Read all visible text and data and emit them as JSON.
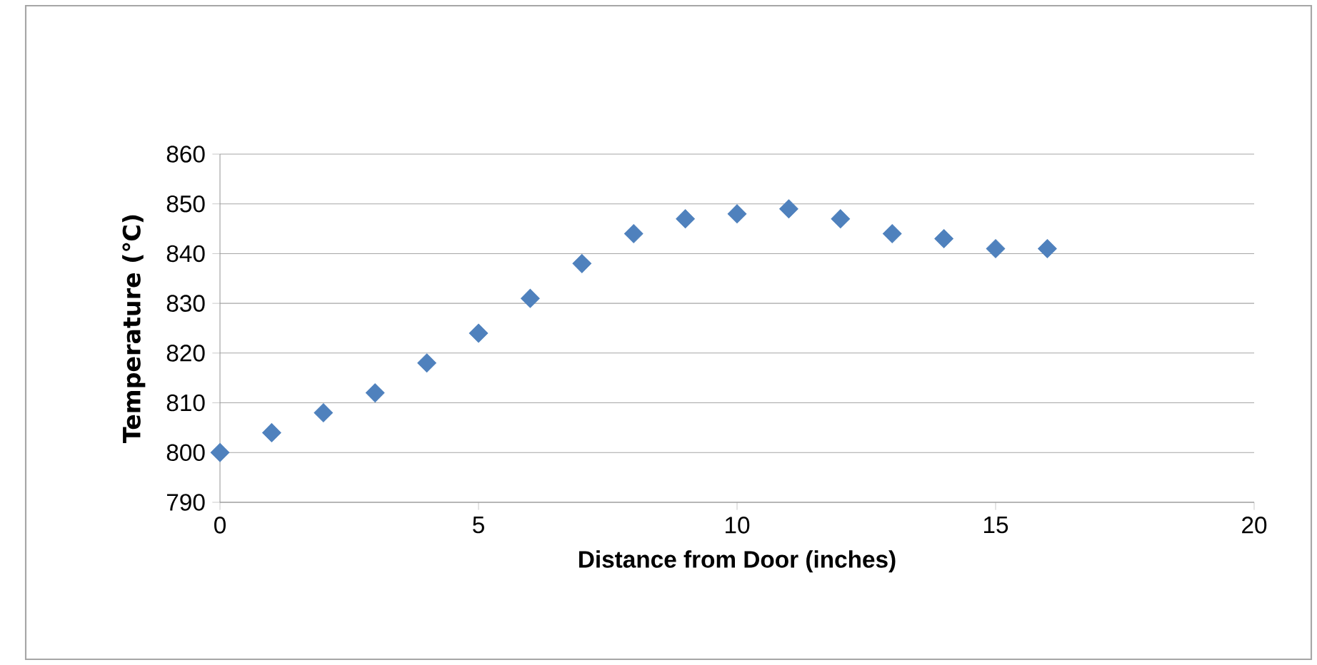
{
  "chart_data": {
    "type": "scatter",
    "xlabel": "Distance from Door (inches)",
    "ylabel": "Temperature (℃)",
    "x": [
      0,
      1,
      2,
      3,
      4,
      5,
      6,
      7,
      8,
      9,
      10,
      11,
      12,
      13,
      14,
      15,
      16
    ],
    "series": [
      {
        "color": "#4f81bd",
        "values": [
          800,
          804,
          808,
          812,
          818,
          824,
          831,
          838,
          844,
          847,
          848,
          849,
          847,
          844,
          843,
          841,
          841
        ]
      }
    ],
    "xlim": [
      0,
      20
    ],
    "xticks": [
      0,
      5,
      10,
      15,
      20
    ],
    "ylim": [
      790,
      860
    ],
    "yticks": [
      790,
      800,
      810,
      820,
      830,
      840,
      850,
      860
    ],
    "grid": "y",
    "marker": "diamond"
  }
}
